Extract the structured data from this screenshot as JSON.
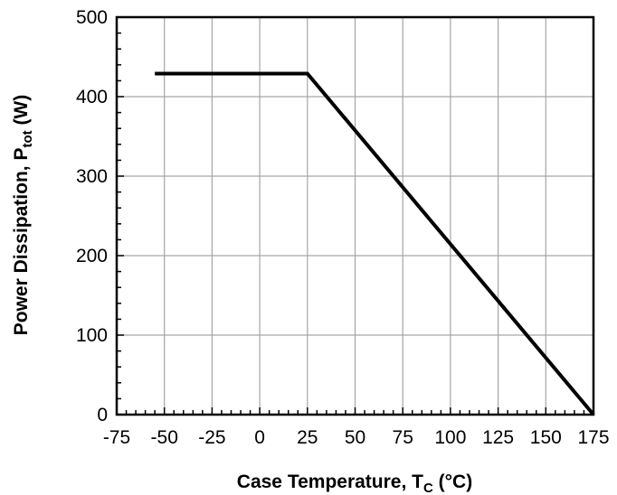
{
  "chart_data": {
    "type": "line",
    "title": "",
    "xlabel": {
      "main": "Case Temperature, T",
      "sub": "C",
      "tail": " (°C)"
    },
    "ylabel": {
      "main": "Power Dissipation, P",
      "sub": "tot",
      "tail": " (W)"
    },
    "xlim": [
      -75,
      175
    ],
    "ylim": [
      0,
      500
    ],
    "xticks": [
      -75,
      -50,
      -25,
      0,
      25,
      50,
      75,
      100,
      125,
      150,
      175
    ],
    "yticks": [
      0,
      100,
      200,
      300,
      400,
      500
    ],
    "grid": true,
    "series": [
      {
        "x": [
          -55,
          25,
          175
        ],
        "y": [
          429,
          429,
          0
        ]
      }
    ],
    "colors": {
      "line": "#000000",
      "grid": "#a6a6a6",
      "frame": "#000000"
    }
  }
}
